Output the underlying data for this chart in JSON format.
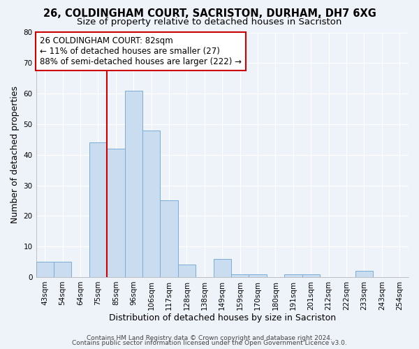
{
  "title": "26, COLDINGHAM COURT, SACRISTON, DURHAM, DH7 6XG",
  "subtitle": "Size of property relative to detached houses in Sacriston",
  "xlabel": "Distribution of detached houses by size in Sacriston",
  "ylabel": "Number of detached properties",
  "bin_labels": [
    "43sqm",
    "54sqm",
    "64sqm",
    "75sqm",
    "85sqm",
    "96sqm",
    "106sqm",
    "117sqm",
    "128sqm",
    "138sqm",
    "149sqm",
    "159sqm",
    "170sqm",
    "180sqm",
    "191sqm",
    "201sqm",
    "212sqm",
    "222sqm",
    "233sqm",
    "243sqm",
    "254sqm"
  ],
  "bar_values": [
    5,
    5,
    0,
    44,
    42,
    61,
    48,
    25,
    4,
    0,
    6,
    1,
    1,
    0,
    1,
    1,
    0,
    0,
    2,
    0,
    0
  ],
  "bar_color": "#c9dcf0",
  "bar_edge_color": "#7aaed6",
  "ylim": [
    0,
    80
  ],
  "yticks": [
    0,
    10,
    20,
    30,
    40,
    50,
    60,
    70,
    80
  ],
  "vline_x_index": 4,
  "vline_color": "#cc0000",
  "annotation_line1": "26 COLDINGHAM COURT: 82sqm",
  "annotation_line2": "← 11% of detached houses are smaller (27)",
  "annotation_line3": "88% of semi-detached houses are larger (222) →",
  "annotation_box_color": "#ffffff",
  "annotation_box_edge": "#cc0000",
  "footer1": "Contains HM Land Registry data © Crown copyright and database right 2024.",
  "footer2": "Contains public sector information licensed under the Open Government Licence v3.0.",
  "background_color": "#eef2f9",
  "grid_color": "#ffffff",
  "title_fontsize": 10.5,
  "subtitle_fontsize": 9.5,
  "axis_label_fontsize": 9,
  "tick_fontsize": 7.5,
  "annotation_fontsize": 8.5,
  "footer_fontsize": 6.5
}
